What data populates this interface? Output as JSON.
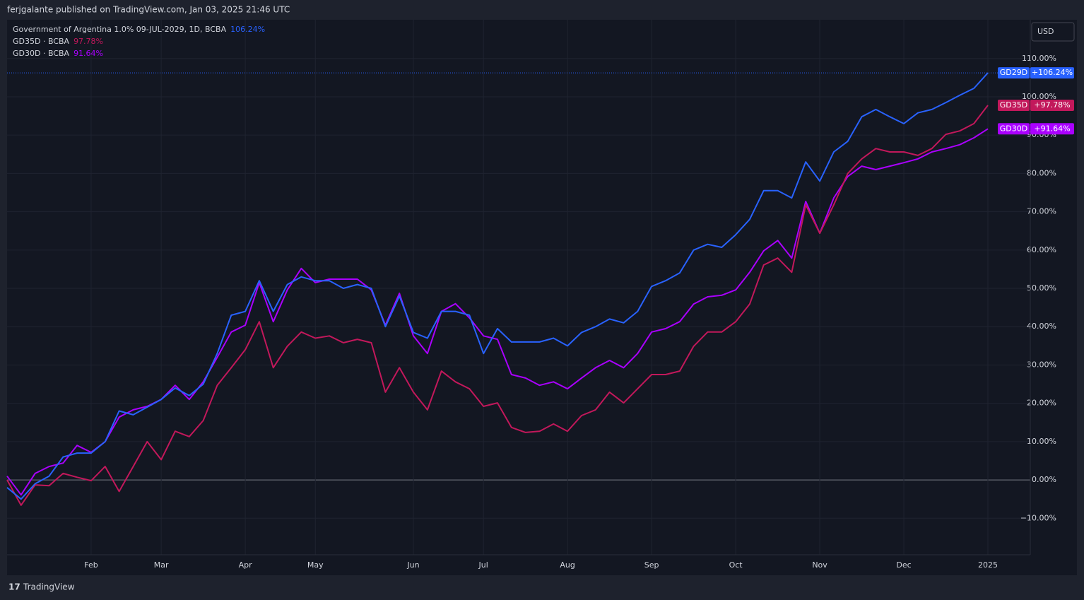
{
  "header": {
    "publisher": "ferjgalante published on TradingView.com, Jan 03, 2025 21:46 UTC",
    "currency": "USD",
    "brand": "TradingView"
  },
  "chart_data": {
    "type": "line",
    "categories": [
      null,
      null,
      null,
      null,
      null,
      null,
      "Feb",
      null,
      null,
      null,
      null,
      "Mar",
      null,
      null,
      null,
      null,
      null,
      "Apr",
      null,
      null,
      null,
      null,
      "May",
      null,
      null,
      null,
      null,
      null,
      null,
      "Jun",
      null,
      null,
      null,
      null,
      "Jul",
      null,
      null,
      null,
      null,
      null,
      "Aug",
      null,
      null,
      null,
      null,
      null,
      "Sep",
      null,
      null,
      null,
      null,
      null,
      "Oct",
      null,
      null,
      null,
      null,
      null,
      "Nov",
      null,
      null,
      null,
      null,
      null,
      "Dec",
      null,
      null,
      null,
      null,
      null,
      "2025"
    ],
    "series": [
      {
        "name": "Government of Argentina 1.0% 09-JUL-2029, 1D, BCBA",
        "short_name": "GD29D",
        "last_value_label": "106.24%",
        "badge_label": "+106.24%",
        "color": "#2962ff",
        "values": [
          -2,
          -5,
          -1,
          1,
          6,
          7,
          7,
          10,
          18,
          17,
          19,
          21,
          24,
          22,
          25,
          33,
          43,
          44,
          52,
          44,
          51,
          53,
          52,
          52,
          50,
          51,
          50,
          40,
          48,
          38.5,
          37,
          44,
          44,
          43,
          33,
          39.5,
          36,
          36,
          36,
          37,
          35,
          38.5,
          40,
          42,
          41,
          44,
          50.5,
          52,
          54,
          60,
          61.5,
          60.7,
          64,
          68,
          75.5,
          75.5,
          73.6,
          83,
          78,
          85.6,
          88.4,
          94.8,
          96.7,
          94.8,
          93,
          95.8,
          96.7,
          98.5,
          100.4,
          102.2,
          106.24
        ]
      },
      {
        "name": "GD35D · BCBA",
        "short_name": "GD35D",
        "last_value_label": "97.78%",
        "badge_label": "+97.78%",
        "color": "#c2185b",
        "values": [
          0,
          -6.6,
          -1.3,
          -1.5,
          1.7,
          0.7,
          -0.2,
          3.5,
          -3,
          3.5,
          10,
          5.3,
          12.7,
          11.3,
          15.5,
          24.7,
          29.3,
          34,
          41.3,
          29.3,
          34.9,
          38.6,
          37,
          37.6,
          35.8,
          36.7,
          35.8,
          22.9,
          29.3,
          22.9,
          18.3,
          28.4,
          25.6,
          23.8,
          19.2,
          20.1,
          13.7,
          12.4,
          12.7,
          14.6,
          12.7,
          16.8,
          18.3,
          22.9,
          20.1,
          23.8,
          27.5,
          27.5,
          28.4,
          34.9,
          38.6,
          38.6,
          41.3,
          45.9,
          56.1,
          57.9,
          54.2,
          71.8,
          64.4,
          71.8,
          80,
          83.8,
          86.5,
          85.6,
          85.6,
          84.7,
          86.5,
          90.2,
          91.1,
          93,
          97.78
        ]
      },
      {
        "name": "GD30D · BCBA",
        "short_name": "GD30D",
        "last_value_label": "91.64%",
        "badge_label": "+91.64%",
        "color": "#aa00ff",
        "values": [
          1,
          -3.9,
          1.7,
          3.5,
          4.4,
          9,
          7.2,
          10,
          16.4,
          18.3,
          19.2,
          21,
          24.7,
          21,
          25.6,
          32,
          38.6,
          40.4,
          51.5,
          41.3,
          49.6,
          55.2,
          51.5,
          52.4,
          52.4,
          52.4,
          49.6,
          40.4,
          48.7,
          37.6,
          33,
          44,
          46,
          42.3,
          37.6,
          36.7,
          27.5,
          26.6,
          24.7,
          25.6,
          23.8,
          26.6,
          29.3,
          31.2,
          29.3,
          33,
          38.6,
          39.5,
          41.3,
          45.9,
          47.8,
          48.2,
          49.6,
          54.2,
          59.8,
          62.5,
          57.9,
          72.7,
          64.4,
          73.6,
          79.2,
          81.9,
          81,
          81.9,
          82.8,
          83.8,
          85.6,
          86.5,
          87.5,
          89.3,
          91.64
        ]
      }
    ],
    "ylim": [
      -24.7,
      120.1
    ],
    "yticks": [
      {
        "value": -10,
        "label": "−10.00%"
      },
      {
        "value": 0,
        "label": "0.00%"
      },
      {
        "value": 10,
        "label": "10.00%"
      },
      {
        "value": 20,
        "label": "20.00%"
      },
      {
        "value": 30,
        "label": "30.00%"
      },
      {
        "value": 40,
        "label": "40.00%"
      },
      {
        "value": 50,
        "label": "50.00%"
      },
      {
        "value": 60,
        "label": "60.00%"
      },
      {
        "value": 70,
        "label": "70.00%"
      },
      {
        "value": 80,
        "label": "80.00%"
      },
      {
        "value": 90,
        "label": "90.00%"
      },
      {
        "value": 100,
        "label": "100.00%"
      },
      {
        "value": 110,
        "label": "110.00%"
      }
    ],
    "grid": true
  }
}
